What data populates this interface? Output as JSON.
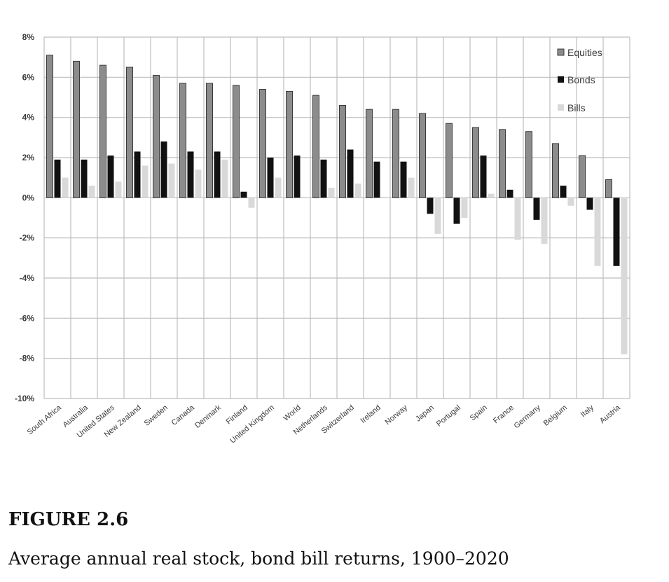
{
  "figure": {
    "number": "FIGURE 2.6",
    "caption": "Average annual real stock, bond bill returns, 1900–2020"
  },
  "chart_data": {
    "type": "bar",
    "title": "",
    "xlabel": "",
    "ylabel": "",
    "ylim": [
      -10,
      8
    ],
    "yticks": [
      8,
      6,
      4,
      2,
      0,
      -2,
      -4,
      -6,
      -8,
      -10
    ],
    "ytick_labels": [
      "8%",
      "6%",
      "4%",
      "2%",
      "0%",
      "-2%",
      "-4%",
      "-6%",
      "-8%",
      "-10%"
    ],
    "grid": true,
    "legend_position": "top-right",
    "categories": [
      "South Africa",
      "Australia",
      "United States",
      "New Zealand",
      "Sweden",
      "Canada",
      "Denmark",
      "Finland",
      "United Kingdom",
      "World",
      "Netherlands",
      "Switzerland",
      "Ireland",
      "Norway",
      "Japan",
      "Portugal",
      "Spain",
      "France",
      "Germany",
      "Belgium",
      "Italy",
      "Austria"
    ],
    "series": [
      {
        "name": "Equities",
        "color": "#8c8c8c",
        "values": [
          7.1,
          6.8,
          6.6,
          6.5,
          6.1,
          5.7,
          5.7,
          5.6,
          5.4,
          5.3,
          5.1,
          4.6,
          4.4,
          4.4,
          4.2,
          3.7,
          3.5,
          3.4,
          3.3,
          2.7,
          2.1,
          0.9
        ]
      },
      {
        "name": "Bonds",
        "color": "#111111",
        "values": [
          1.9,
          1.9,
          2.1,
          2.3,
          2.8,
          2.3,
          2.3,
          0.3,
          2.0,
          2.1,
          1.9,
          2.4,
          1.8,
          1.8,
          -0.8,
          -1.3,
          2.1,
          0.4,
          -1.1,
          0.6,
          -0.6,
          -3.4
        ]
      },
      {
        "name": "Bills",
        "color": "#d9d9d9",
        "values": [
          1.0,
          0.6,
          0.8,
          1.6,
          1.7,
          1.4,
          1.9,
          -0.5,
          1.0,
          0.0,
          0.5,
          0.7,
          0.0,
          1.0,
          -1.8,
          -1.0,
          0.2,
          -2.1,
          -2.3,
          -0.4,
          -3.4,
          -7.8
        ]
      }
    ]
  }
}
